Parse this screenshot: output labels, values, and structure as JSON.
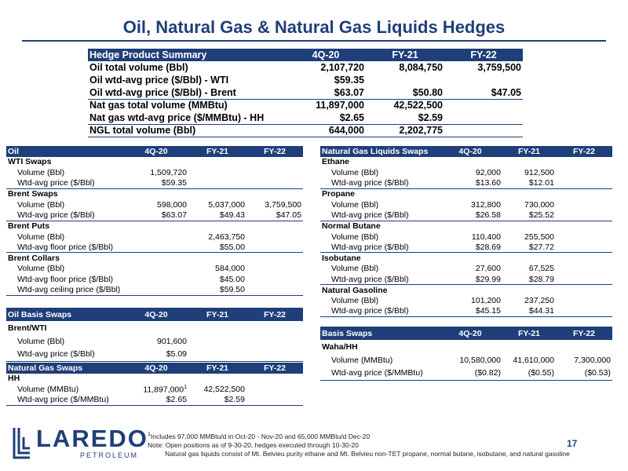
{
  "title": "Oil, Natural Gas & Natural Gas Liquids Hedges",
  "summary": {
    "header": [
      "Hedge Product Summary",
      "4Q-20",
      "FY-21",
      "FY-22"
    ],
    "rows": [
      [
        "Oil total volume (Bbl)",
        "2,107,720",
        "8,084,750",
        "3,759,500"
      ],
      [
        "Oil wtd-avg price ($/Bbl) - WTI",
        "$59.35",
        "",
        ""
      ],
      [
        "Oil wtd-avg price ($/Bbl) - Brent",
        "$63.07",
        "$50.80",
        "$47.05"
      ],
      [
        "Nat gas total volume (MMBtu)",
        "11,897,000",
        "42,522,500",
        ""
      ],
      [
        "Nat gas wtd-avg price ($/MMBtu) - HH",
        "$2.65",
        "$2.59",
        ""
      ],
      [
        "NGL total volume (Bbl)",
        "644,000",
        "2,202,775",
        ""
      ]
    ]
  },
  "oil": {
    "header": [
      "Oil",
      "4Q-20",
      "FY-21",
      "FY-22"
    ],
    "sections": [
      {
        "name": "WTI Swaps",
        "rows": [
          [
            "Volume (Bbl)",
            "1,509,720",
            "",
            ""
          ],
          [
            "Wtd-avg price ($/Bbl)",
            "$59.35",
            "",
            ""
          ]
        ]
      },
      {
        "name": "Brent Swaps",
        "rows": [
          [
            "Volume (Bbl)",
            "598,000",
            "5,037,000",
            "3,759,500"
          ],
          [
            "Wtd-avg price ($/Bbl)",
            "$63.07",
            "$49.43",
            "$47.05"
          ]
        ]
      },
      {
        "name": "Brent Puts",
        "rows": [
          [
            "Volume (Bbl)",
            "",
            "2,463,750",
            ""
          ],
          [
            "Wtd-avg floor price ($/Bbl)",
            "",
            "$55.00",
            ""
          ]
        ]
      },
      {
        "name": "Brent Collars",
        "rows": [
          [
            "Volume (Bbl)",
            "",
            "584,000",
            ""
          ],
          [
            "Wtd-avg floor price ($/Bbl)",
            "",
            "$45.00",
            ""
          ],
          [
            "Wtd-avg ceiling price ($/Bbl)",
            "",
            "$59.50",
            ""
          ]
        ]
      }
    ]
  },
  "ngl": {
    "header": [
      "Natural Gas Liquids Swaps",
      "4Q-20",
      "FY-21",
      "FY-22"
    ],
    "sections": [
      {
        "name": "Ethane",
        "rows": [
          [
            "Volume (Bbl)",
            "92,000",
            "912,500",
            ""
          ],
          [
            "Wtd-avg price ($/Bbl)",
            "$13.60",
            "$12.01",
            ""
          ]
        ]
      },
      {
        "name": "Propane",
        "rows": [
          [
            "Volume (Bbl)",
            "312,800",
            "730,000",
            ""
          ],
          [
            "Wtd-avg price ($/Bbl)",
            "$26.58",
            "$25.52",
            ""
          ]
        ]
      },
      {
        "name": "Normal Butane",
        "rows": [
          [
            "Volume (Bbl)",
            "110,400",
            "255,500",
            ""
          ],
          [
            "Wtd-avg price ($/Bbl)",
            "$28.69",
            "$27.72",
            ""
          ]
        ]
      },
      {
        "name": "Isobutane",
        "rows": [
          [
            "Volume (Bbl)",
            "27,600",
            "67,525",
            ""
          ],
          [
            "Wtd-avg price ($/Bbl)",
            "$29.99",
            "$28.79",
            ""
          ]
        ]
      },
      {
        "name": "Natural Gasoline",
        "rows": [
          [
            "Volume (Bbl)",
            "101,200",
            "237,250",
            ""
          ],
          [
            "Wtd-avg price ($/Bbl)",
            "$45.15",
            "$44.31",
            ""
          ]
        ]
      }
    ]
  },
  "oil_basis": {
    "header": [
      "Oil Basis Swaps",
      "4Q-20",
      "FY-21",
      "FY-22"
    ],
    "section": "Brent/WTI",
    "rows": [
      [
        "Volume (Bbl)",
        "901,600",
        "",
        ""
      ],
      [
        "Wtd-avg price ($/Bbl)",
        "$5.09",
        "",
        ""
      ]
    ]
  },
  "nat_gas": {
    "header": [
      "Natural Gas Swaps",
      "4Q-20",
      "FY-21",
      "FY-22"
    ],
    "section": "HH",
    "rows": [
      [
        "Volume (MMBtu)",
        "11,897,000",
        "42,522,500",
        ""
      ],
      [
        "Wtd-avg price ($/MMBtu)",
        "$2.65",
        "$2.59",
        ""
      ]
    ],
    "footnote_mark": "1"
  },
  "basis": {
    "header": [
      "Basis Swaps",
      "4Q-20",
      "FY-21",
      "FY-22"
    ],
    "section": "Waha/HH",
    "rows": [
      [
        "Volume (MMBtu)",
        "10,580,000",
        "41,610,000",
        "7,300,000"
      ],
      [
        "Wtd-avg price ($/MMBtu)",
        "($0.82)",
        "($0.55)",
        "($0.53)"
      ]
    ]
  },
  "footnotes": {
    "f1_mark": "1",
    "f1": "Includes 97,000 MMBtu/d in Oct-20 - Nov-20 and 65,000 MMBtu/d Dec-20",
    "f2": "Note: Open positions as of 9-30-20, hedges executed through 10-30-20",
    "f3": "Natural gas liquids consist of Mt. Belvieu purity ethane and Mt. Belvieu non-TET propane, normal butane, isobutane, and natural gasoline"
  },
  "logo": {
    "word": "LAREDO",
    "sub": "PETROLEUM",
    "color": "#1f3f7a"
  },
  "page_number": "17"
}
